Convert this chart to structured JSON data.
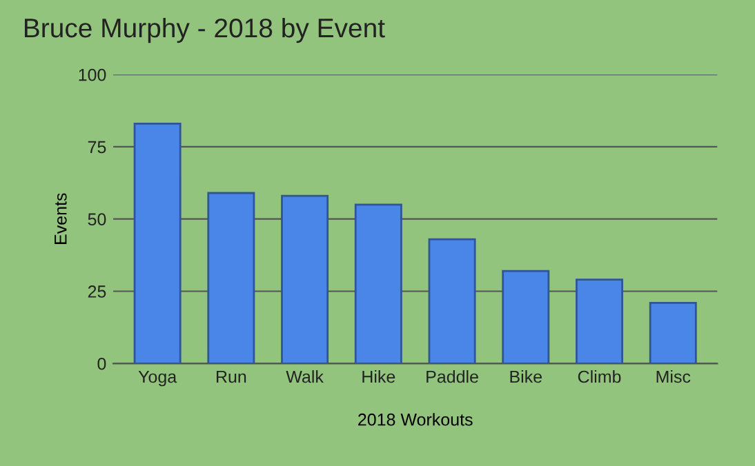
{
  "chart_data": {
    "type": "bar",
    "title": "Bruce Murphy - 2018 by Event",
    "xlabel": "2018 Workouts",
    "ylabel": "Events",
    "categories": [
      "Yoga",
      "Run",
      "Walk",
      "Hike",
      "Paddle",
      "Bike",
      "Climb",
      "Misc"
    ],
    "values": [
      83,
      59,
      58,
      55,
      43,
      32,
      29,
      21
    ],
    "color": "#4a86e8",
    "ylim": [
      0,
      100
    ],
    "yticks": [
      0,
      25,
      50,
      75,
      100
    ],
    "grid": "y"
  }
}
